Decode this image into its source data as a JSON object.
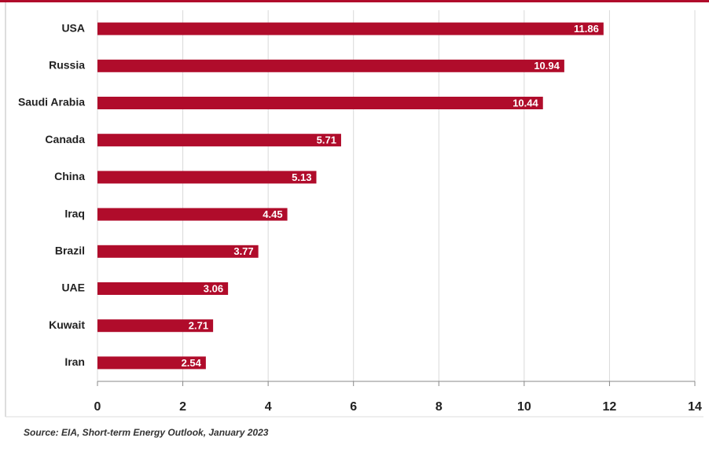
{
  "chart_data": {
    "type": "bar",
    "orientation": "horizontal",
    "categories": [
      "USA",
      "Russia",
      "Saudi Arabia",
      "Canada",
      "China",
      "Iraq",
      "Brazil",
      "UAE",
      "Kuwait",
      "Iran"
    ],
    "values": [
      11.86,
      10.94,
      10.44,
      5.71,
      5.13,
      4.45,
      3.77,
      3.06,
      2.71,
      2.54
    ],
    "color": "#b00c2b",
    "xlim": [
      0,
      14
    ],
    "xticks": [
      0,
      2,
      4,
      6,
      8,
      10,
      12,
      14
    ],
    "grid": true,
    "source": "Source: EIA, Short-term Energy Outlook, January 2023"
  }
}
